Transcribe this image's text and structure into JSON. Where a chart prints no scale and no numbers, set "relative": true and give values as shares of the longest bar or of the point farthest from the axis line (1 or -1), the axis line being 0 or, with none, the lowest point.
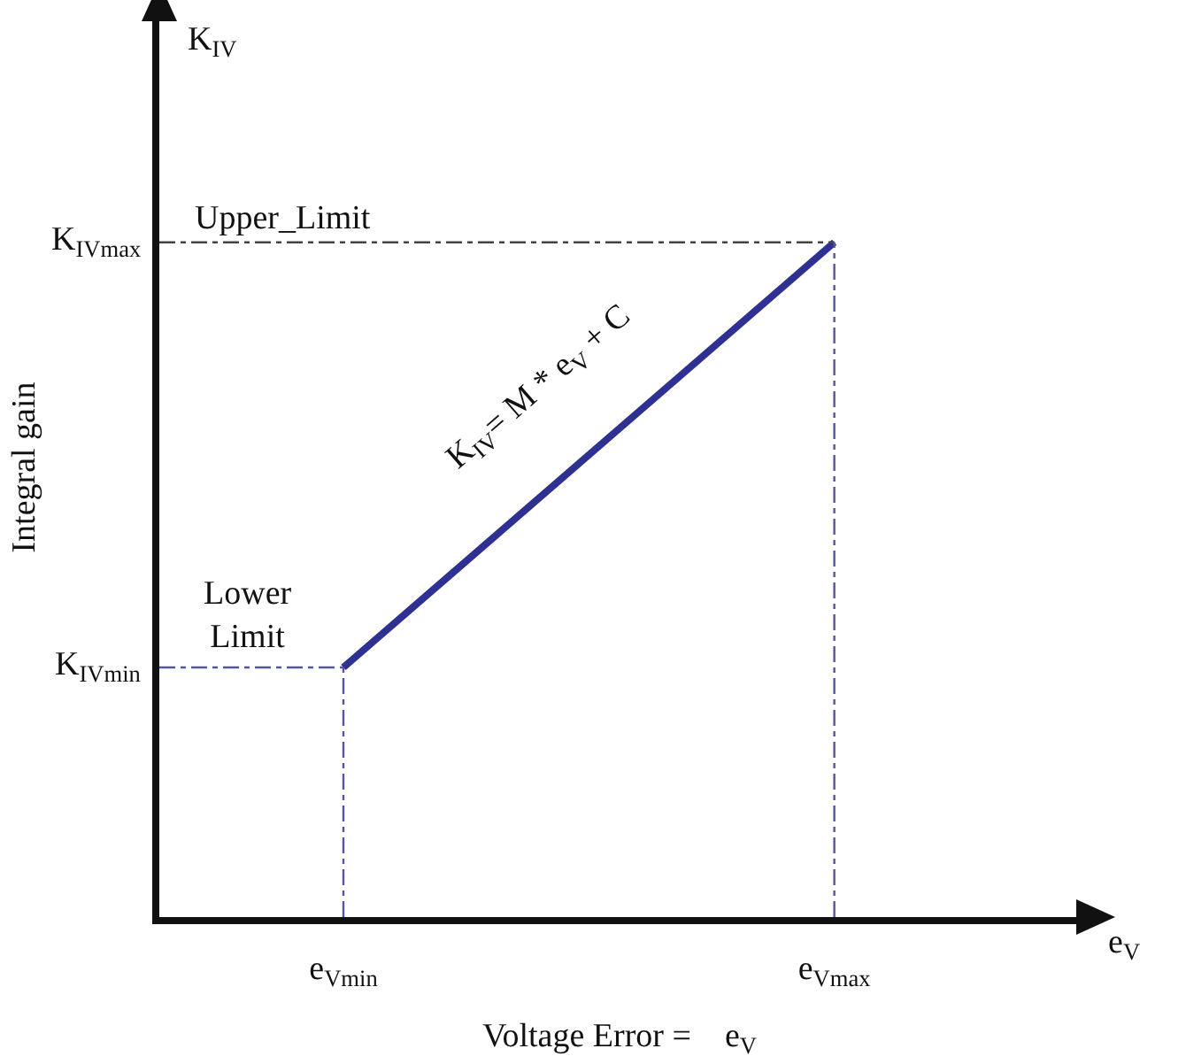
{
  "chart_data": {
    "type": "line",
    "relative": true,
    "xlabel": "Voltage Error =    e$_{V}$",
    "ylabel": "Integral gain",
    "categories": [
      null,
      null,
      null,
      "e$_{Vmin}$",
      null,
      null,
      null,
      null,
      null,
      null,
      null,
      "e$_{Vmax}$",
      null,
      null,
      null,
      null
    ],
    "grid": false,
    "marker": "none",
    "series": [
      {
        "color": "#2e3192",
        "values": [
          null,
          null,
          null,
          0.37,
          null,
          null,
          null,
          null,
          null,
          null,
          null,
          1,
          null,
          null,
          null,
          null
        ],
        "line_style": "solid"
      },
      {
        "color": "#5555a0",
        "values": [
          0.37,
          null,
          null,
          0.37,
          null,
          null,
          null,
          null,
          null,
          null,
          null,
          null,
          null,
          null,
          null,
          null
        ],
        "line_style": "dashed"
      },
      {
        "color": "#444444",
        "values": [
          1,
          null,
          null,
          null,
          null,
          null,
          null,
          null,
          null,
          null,
          null,
          1,
          null,
          null,
          null,
          null
        ],
        "line_style": "dashed"
      },
      {
        "color": "#5555a0",
        "x": [
          "e$_{Vmin}$",
          "e$_{Vmin}$"
        ],
        "values": [
          0,
          0.37
        ],
        "line_style": "dashed"
      },
      {
        "color": "#5555a0",
        "x": [
          "e$_{Vmax}$",
          "e$_{Vmax}$"
        ],
        "values": [
          0,
          1
        ],
        "line_style": "dashed"
      }
    ],
    "annotations": [
      "Upper_Limit",
      "Lower\nLimit",
      "K$_{IV}$= M * e$_{V}$ + C",
      "K$_{IV}$",
      "e$_{V}$",
      "K$_{IVmax}$",
      "K$_{IVmin}$"
    ]
  }
}
